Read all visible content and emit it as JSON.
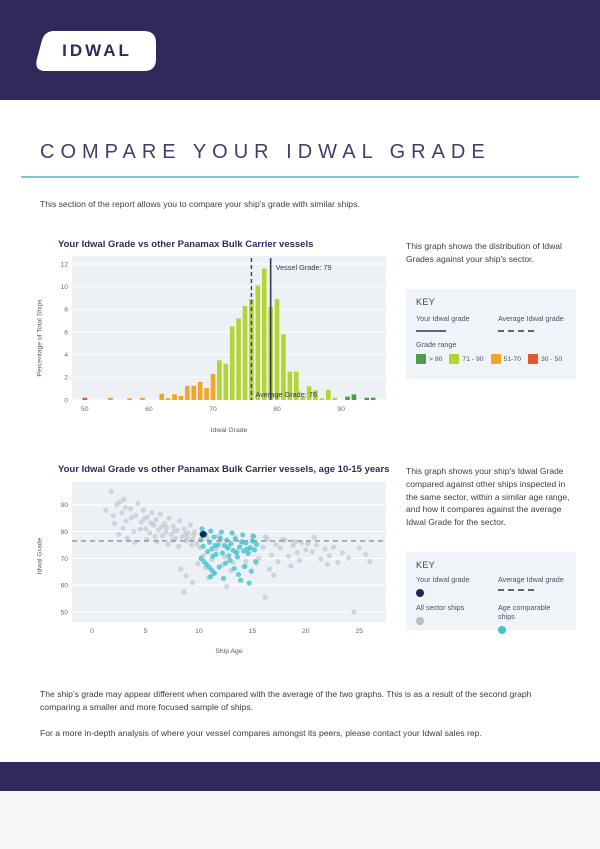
{
  "header": {
    "logo_text": "IDWAL"
  },
  "title": "COMPARE YOUR IDWAL GRADE",
  "intro": "This section of the report allows you to compare your ship's grade with similar ships.",
  "colors": {
    "brand_navy": "#2f2a5b",
    "rule_teal": "#7dc7d7",
    "plot_background": "#edf0f5",
    "grid_line": "#ffffff",
    "vessel_line": "#343a56",
    "average_line": "#3c4254",
    "scatter_average_line": "#8d939c",
    "your_ship_dot": "#1d2556",
    "sector_dot": "#b9bcc2",
    "age_comparable_dot": "#3fc5cf",
    "grade_gt90": "#4a9e4a",
    "grade_71_90": "#b5d334",
    "grade_51_70": "#f6a427",
    "grade_30_50": "#e4572e"
  },
  "chart1": {
    "title": "Your Idwal Grade vs other Panamax Bulk Carrier vessels",
    "xlabel": "Idwal Grade",
    "ylabel": "Percentage of Total Ships",
    "description": "This graph shows the distribution of Idwal Grades against your ship's sector.",
    "key": {
      "heading": "KEY",
      "your_grade_label": "Your Idwal grade",
      "average_grade_label": "Average Idwal grade",
      "grade_range_label": "Grade range",
      "ranges": [
        {
          "label": "> 90",
          "color": "#4a9e4a"
        },
        {
          "label": "71 - 90",
          "color": "#b5d334"
        },
        {
          "label": "51-70",
          "color": "#f6a427"
        },
        {
          "label": "30 - 50",
          "color": "#e4572e"
        }
      ]
    }
  },
  "chart2": {
    "title": "Your Idwal Grade vs other Panamax Bulk Carrier vessels, age 10-15 years",
    "xlabel": "Ship Age",
    "ylabel": "Idwal Grade",
    "description": "This graph shows your ship's Idwal Grade compared against other ships inspected in the same sector, within a similar age range, and how it compares against the average Idwal Grade for the sector.",
    "key": {
      "heading": "KEY",
      "your_grade_label": "Your Idwal grade",
      "average_grade_label": "Average Idwal grade",
      "all_ships_label": "All sector ships",
      "age_ships_label": "Age comparable ships"
    }
  },
  "notes": {
    "p1": "The ship's grade may appear different when compared with the average of the two graphs. This is as a result of the second graph comparing a smaller and more focused sample of ships.",
    "p2": "For a more in-depth analysis of where your vessel compares amongst its peers, please contact your Idwal sales rep."
  },
  "chart_data": [
    {
      "type": "bar",
      "title": "Your Idwal Grade vs other Panamax Bulk Carrier vessels",
      "xlabel": "Idwal Grade",
      "ylabel": "Percentage of Total Ships",
      "xlim": [
        48,
        97
      ],
      "ylim": [
        0,
        12
      ],
      "x_ticks": [
        50,
        60,
        70,
        80,
        90
      ],
      "y_ticks": [
        0,
        2,
        4,
        6,
        8,
        10,
        12
      ],
      "vessel_grade": 79,
      "vessel_label": "Vessel Grade: 79",
      "average_grade": 76,
      "average_label": "Average Grade: 76",
      "bars": [
        [
          50,
          0.2
        ],
        [
          54,
          0.2
        ],
        [
          57,
          0.15
        ],
        [
          59,
          0.2
        ],
        [
          62,
          0.55
        ],
        [
          63,
          0.15
        ],
        [
          64,
          0.5
        ],
        [
          65,
          0.35
        ],
        [
          66,
          1.25
        ],
        [
          67,
          1.25
        ],
        [
          68,
          1.6
        ],
        [
          69,
          1.05
        ],
        [
          70,
          2.3
        ],
        [
          71,
          3.5
        ],
        [
          72,
          3.2
        ],
        [
          73,
          6.5
        ],
        [
          74,
          7.2
        ],
        [
          75,
          8.3
        ],
        [
          76,
          8.9
        ],
        [
          77,
          10.1
        ],
        [
          78,
          11.6
        ],
        [
          79,
          8.2
        ],
        [
          80,
          8.9
        ],
        [
          81,
          5.8
        ],
        [
          82,
          2.5
        ],
        [
          83,
          2.5
        ],
        [
          84,
          0.3
        ],
        [
          85,
          1.2
        ],
        [
          86,
          0.85
        ],
        [
          87,
          0.15
        ],
        [
          88,
          0.9
        ],
        [
          89,
          0.2
        ],
        [
          91,
          0.3
        ],
        [
          92,
          0.5
        ],
        [
          94,
          0.2
        ],
        [
          95,
          0.2
        ]
      ]
    },
    {
      "type": "scatter",
      "title": "Your Idwal Grade vs other Panamax Bulk Carrier vessels, age 10-15 years",
      "xlabel": "Ship Age",
      "ylabel": "Idwal Grade",
      "xlim": [
        -1.5,
        27.5
      ],
      "ylim": [
        47,
        97
      ],
      "x_ticks": [
        0,
        5,
        10,
        15,
        20,
        25
      ],
      "y_ticks": [
        50,
        60,
        70,
        80,
        90
      ],
      "average_grade": 76.5,
      "your_ship": [
        10.4,
        79
      ],
      "sector_ships": [
        [
          1.3,
          88
        ],
        [
          1.8,
          95
        ],
        [
          2.0,
          86
        ],
        [
          2.1,
          83
        ],
        [
          2.3,
          90
        ],
        [
          2.5,
          79
        ],
        [
          2.6,
          91
        ],
        [
          2.8,
          87
        ],
        [
          2.9,
          81.2
        ],
        [
          3.0,
          92
        ],
        [
          3.1,
          89
        ],
        [
          3.2,
          84
        ],
        [
          3.3,
          77.5
        ],
        [
          3.6,
          88.5
        ],
        [
          3.7,
          85.2
        ],
        [
          3.9,
          80
        ],
        [
          4.0,
          76
        ],
        [
          4.1,
          86
        ],
        [
          4.3,
          90.5
        ],
        [
          4.5,
          80.8
        ],
        [
          4.6,
          83.5
        ],
        [
          4.8,
          88
        ],
        [
          4.9,
          84.8
        ],
        [
          5.0,
          81
        ],
        [
          5.1,
          77
        ],
        [
          5.2,
          85.5
        ],
        [
          5.4,
          79.5
        ],
        [
          5.5,
          83.2
        ],
        [
          5.6,
          87
        ],
        [
          5.8,
          82.5
        ],
        [
          5.9,
          78.2
        ],
        [
          6.0,
          84.5
        ],
        [
          6.1,
          76.2
        ],
        [
          6.2,
          80.5
        ],
        [
          6.4,
          86.5
        ],
        [
          6.5,
          81.8
        ],
        [
          6.6,
          78.5
        ],
        [
          6.8,
          83
        ],
        [
          6.9,
          79.8
        ],
        [
          7.0,
          81.5
        ],
        [
          7.1,
          75.2
        ],
        [
          7.2,
          85
        ],
        [
          7.4,
          79
        ],
        [
          7.5,
          76.8
        ],
        [
          7.6,
          82
        ],
        [
          7.7,
          80.2
        ],
        [
          7.8,
          77.5
        ],
        [
          8.0,
          80.5
        ],
        [
          8.1,
          74.5
        ],
        [
          8.2,
          84
        ],
        [
          8.4,
          78
        ],
        [
          8.6,
          81
        ],
        [
          8.7,
          79.2
        ],
        [
          8.8,
          76.5
        ],
        [
          8.9,
          77.8
        ],
        [
          9.0,
          79.5
        ],
        [
          9.2,
          82.5
        ],
        [
          9.3,
          75
        ],
        [
          9.4,
          77
        ],
        [
          9.5,
          78.8
        ],
        [
          9.6,
          80
        ],
        [
          9.8,
          75.5
        ],
        [
          9.9,
          68
        ],
        [
          10.1,
          74
        ],
        [
          10.2,
          79.2
        ],
        [
          10.4,
          71
        ],
        [
          10.6,
          66.5
        ],
        [
          10.8,
          77.5
        ],
        [
          10.9,
          62.8
        ],
        [
          11.2,
          69.5
        ],
        [
          11.4,
          64.5
        ],
        [
          11.6,
          73.5
        ],
        [
          11.8,
          78.2
        ],
        [
          12.0,
          76.5
        ],
        [
          12.2,
          67.5
        ],
        [
          12.4,
          70.5
        ],
        [
          12.8,
          74.5
        ],
        [
          13.0,
          65.5
        ],
        [
          13.2,
          68.5
        ],
        [
          13.4,
          77.8
        ],
        [
          13.6,
          72.5
        ],
        [
          14.0,
          75.5
        ],
        [
          14.2,
          66.8
        ],
        [
          14.4,
          69
        ],
        [
          14.8,
          73
        ],
        [
          15.0,
          78.5
        ],
        [
          15.2,
          76
        ],
        [
          15.4,
          68.2
        ],
        [
          15.6,
          70
        ],
        [
          16.0,
          74.2
        ],
        [
          16.2,
          78
        ],
        [
          16.4,
          77.2
        ],
        [
          16.6,
          66
        ],
        [
          16.8,
          71.2
        ],
        [
          17.2,
          75.2
        ],
        [
          17.4,
          68.8
        ],
        [
          17.6,
          73.8
        ],
        [
          17.8,
          77
        ],
        [
          18.0,
          76.8
        ],
        [
          18.4,
          70.8
        ],
        [
          18.6,
          67.2
        ],
        [
          18.8,
          74.8
        ],
        [
          19.0,
          76.2
        ],
        [
          19.2,
          72.2
        ],
        [
          19.4,
          69.2
        ],
        [
          19.6,
          75.8
        ],
        [
          20.0,
          73.2
        ],
        [
          20.2,
          75.5
        ],
        [
          8.3,
          66
        ],
        [
          8.6,
          57.5
        ],
        [
          8.8,
          63.5
        ],
        [
          9.4,
          61
        ],
        [
          12.6,
          59.5
        ],
        [
          16.2,
          55.5
        ],
        [
          17.0,
          63.8
        ],
        [
          24.5,
          50
        ],
        [
          20.6,
          72.5
        ],
        [
          20.8,
          77.8
        ],
        [
          21.0,
          75
        ],
        [
          21.4,
          69.8
        ],
        [
          21.8,
          73.5
        ],
        [
          22.0,
          67.8
        ],
        [
          22.2,
          71
        ],
        [
          22.6,
          74.2
        ],
        [
          23.0,
          68.5
        ],
        [
          23.4,
          72
        ],
        [
          24.0,
          70.2
        ],
        [
          25.0,
          73.8
        ],
        [
          25.6,
          71.5
        ],
        [
          26.0,
          68.8
        ]
      ],
      "age_comparable_ships": [
        [
          10.2,
          77
        ],
        [
          10.2,
          70
        ],
        [
          10.3,
          81
        ],
        [
          10.4,
          74.5
        ],
        [
          10.45,
          68.9
        ],
        [
          10.6,
          79
        ],
        [
          10.7,
          67.8
        ],
        [
          10.8,
          72.5
        ],
        [
          10.95,
          66.7
        ],
        [
          11.0,
          76
        ],
        [
          11.1,
          80.2
        ],
        [
          11.1,
          63.2
        ],
        [
          11.2,
          73.5
        ],
        [
          11.2,
          65.6
        ],
        [
          11.3,
          70.8
        ],
        [
          11.4,
          78
        ],
        [
          11.45,
          64.5
        ],
        [
          11.5,
          74.8
        ],
        [
          11.6,
          71.5
        ],
        [
          11.8,
          75
        ],
        [
          11.9,
          66.8
        ],
        [
          12.0,
          77.5
        ],
        [
          12.1,
          79.8
        ],
        [
          12.2,
          72
        ],
        [
          12.3,
          62.5
        ],
        [
          12.4,
          74.8
        ],
        [
          12.5,
          68.2
        ],
        [
          12.6,
          76.8
        ],
        [
          12.7,
          73.8
        ],
        [
          12.8,
          71
        ],
        [
          12.9,
          69.3
        ],
        [
          13.0,
          75.5
        ],
        [
          13.1,
          79.5
        ],
        [
          13.2,
          73
        ],
        [
          13.3,
          66.2
        ],
        [
          13.4,
          77.2
        ],
        [
          13.5,
          72.2
        ],
        [
          13.6,
          70.5
        ],
        [
          13.7,
          64
        ],
        [
          13.8,
          74.2
        ],
        [
          13.9,
          61.8
        ],
        [
          14.0,
          76.2
        ],
        [
          14.1,
          78.8
        ],
        [
          14.2,
          72.8
        ],
        [
          14.3,
          67
        ],
        [
          14.4,
          75.8
        ],
        [
          14.5,
          73.5
        ],
        [
          14.6,
          71.8
        ],
        [
          14.7,
          60.8
        ],
        [
          14.8,
          74
        ],
        [
          14.9,
          65.2
        ],
        [
          15.0,
          76.5
        ],
        [
          15.1,
          78.2
        ],
        [
          15.2,
          73.2
        ],
        [
          15.3,
          68.8
        ],
        [
          15.4,
          75.2
        ]
      ]
    }
  ]
}
